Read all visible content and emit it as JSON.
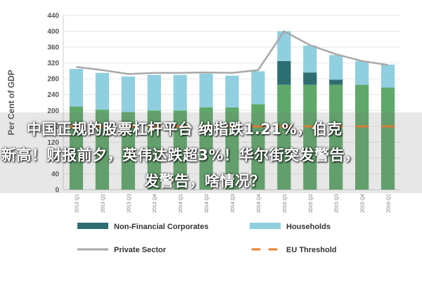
{
  "chart_data": {
    "type": "bar",
    "ylabel": "Per Cent of GDP",
    "ylim": [
      0,
      440
    ],
    "yticks": [
      0,
      40,
      80,
      120,
      160,
      200,
      240,
      280,
      320,
      360,
      400,
      440
    ],
    "categories": [
      "2013 Q1",
      "2013 Q2",
      "2013 Q3",
      "2013 Q4",
      "2014 Q1",
      "2014 Q2",
      "2014 Q3",
      "2014 Q4",
      "2015 Q1",
      "2015 Q2",
      "2015 Q3",
      "2015 Q4",
      "2016 Q1"
    ],
    "series": [
      {
        "name": "Non-Financial Corporates",
        "kind": "bar-segment",
        "color": "#2d6e72",
        "values": [
          210,
          202,
          196,
          200,
          200,
          208,
          208,
          216,
          325,
          296,
          278,
          265,
          258
        ]
      },
      {
        "name": "Households",
        "kind": "bar-segment",
        "color": "#8fcfe0",
        "values": [
          95,
          93,
          90,
          90,
          90,
          85,
          80,
          83,
          75,
          68,
          62,
          60,
          58
        ]
      },
      {
        "name": "Private Sector",
        "kind": "line",
        "color": "#a8a8a8",
        "values": [
          310,
          302,
          292,
          295,
          295,
          296,
          295,
          302,
          400,
          365,
          342,
          325,
          315
        ]
      },
      {
        "name": "EU Threshold",
        "kind": "threshold",
        "color": "#f07c2a",
        "values": [
          160,
          160,
          160,
          160,
          160,
          160,
          160,
          160,
          160,
          160,
          160,
          160,
          160
        ]
      }
    ],
    "legend": [
      {
        "label": "Non-Financial Corporates",
        "color": "#2d6e72",
        "style": "bar"
      },
      {
        "label": "Households",
        "color": "#8fcfe0",
        "style": "bar"
      },
      {
        "label": "Private Sector",
        "color": "#a8a8a8",
        "style": "line"
      },
      {
        "label": "EU Threshold",
        "color": "#f07c2a",
        "style": "dash"
      }
    ],
    "legend_position": "bottom",
    "grid": true
  },
  "overlay": {
    "line1": "中国正规的股票杠杆平台 纳指跌1.21%，伯克",
    "line2": "新高！财报前夕，英伟达跌超3%！华尔街突发警告，",
    "line3": "发警告，啥情况？"
  }
}
